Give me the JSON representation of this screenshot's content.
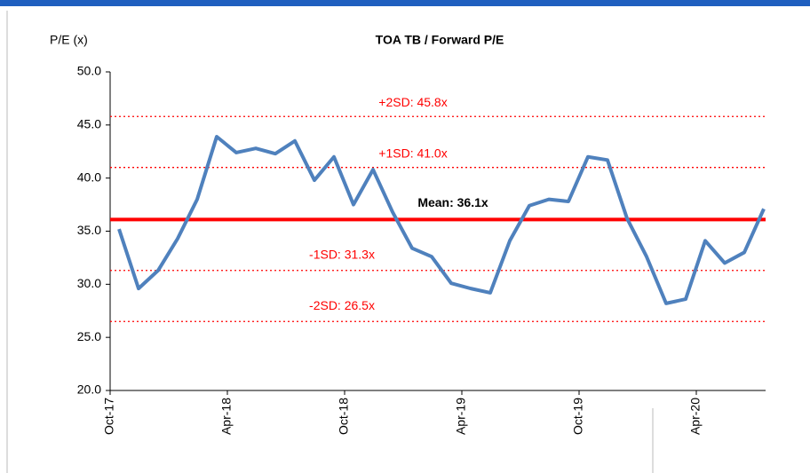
{
  "chart_data": {
    "type": "line",
    "title": "TOA TB / Forward P/E",
    "y_label": "P/E  (x)",
    "categories": [
      "Oct-17",
      null,
      null,
      null,
      null,
      null,
      "Apr-18",
      null,
      null,
      null,
      null,
      null,
      "Oct-18",
      null,
      null,
      null,
      null,
      null,
      "Apr-19",
      null,
      null,
      null,
      null,
      null,
      "Oct-19",
      null,
      null,
      null,
      null,
      null,
      "Apr-20",
      null,
      null,
      null
    ],
    "series": [
      {
        "name": "Forward P/E",
        "color": "#4f81bd",
        "values": [
          35.2,
          29.6,
          31.3,
          34.3,
          38.0,
          43.9,
          42.4,
          42.8,
          42.3,
          43.5,
          39.8,
          42.0,
          37.5,
          40.8,
          36.8,
          33.4,
          32.6,
          30.1,
          29.6,
          29.2,
          34.1,
          37.4,
          38.0,
          37.8,
          42.0,
          41.7,
          36.2,
          32.6,
          28.2,
          28.6,
          34.1,
          32.0,
          33.0,
          37.1
        ]
      }
    ],
    "reference_lines": [
      {
        "label": "+2SD:  45.8x",
        "value": 45.8,
        "color": "#ff0000",
        "style": "dotted"
      },
      {
        "label": "+1SD:  41.0x",
        "value": 41.0,
        "color": "#ff0000",
        "style": "dotted"
      },
      {
        "label": "Mean: 36.1x",
        "value": 36.1,
        "color": "#ff0000",
        "style": "solid"
      },
      {
        "label": "-1SD:  31.3x",
        "value": 31.3,
        "color": "#ff0000",
        "style": "dotted"
      },
      {
        "label": "-2SD:  26.5x",
        "value": 26.5,
        "color": "#ff0000",
        "style": "dotted"
      }
    ],
    "ylim": [
      20,
      50
    ],
    "yticks": [
      {
        "value": 20,
        "label": "20.0"
      },
      {
        "value": 25,
        "label": "25.0"
      },
      {
        "value": 30,
        "label": "30.0"
      },
      {
        "value": 35,
        "label": "35.0"
      },
      {
        "value": 40,
        "label": "40.0"
      },
      {
        "value": 45,
        "label": "45.0"
      },
      {
        "value": 50,
        "label": "50.0"
      }
    ],
    "grid": false
  }
}
